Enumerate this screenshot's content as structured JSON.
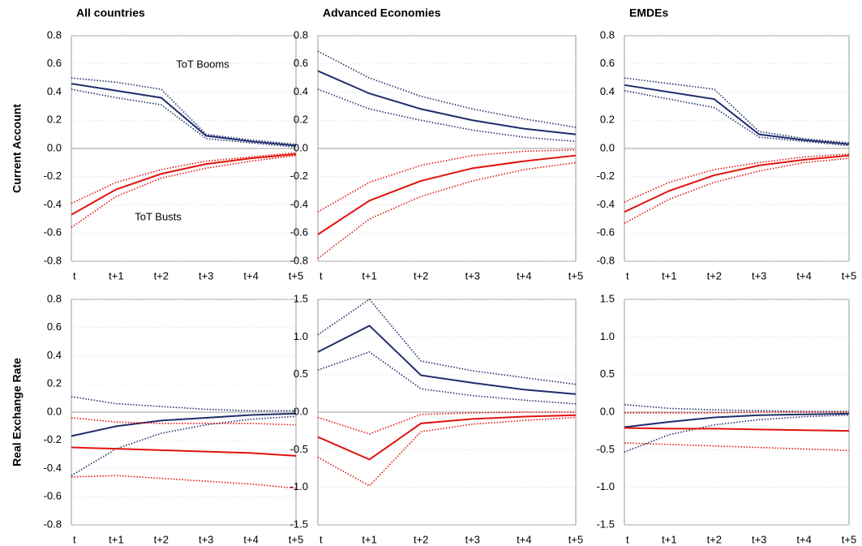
{
  "chart_data": [
    {
      "type": "line",
      "title": "All countries",
      "ylabel": "Current Account",
      "categories": [
        "t",
        "t+1",
        "t+2",
        "t+3",
        "t+4",
        "t+5"
      ],
      "ylim": [
        -0.8,
        0.8
      ],
      "yticks": [
        -0.8,
        -0.6,
        -0.4,
        -0.2,
        {
          "value": 0,
          "label": "0.0"
        },
        0.2,
        0.4,
        0.6,
        0.8
      ],
      "grid": true,
      "annotations": [
        {
          "text": "ToT Booms",
          "color": "#1f2d6b"
        },
        {
          "text": "ToT Busts",
          "color": "#e3120b"
        }
      ],
      "series": [
        {
          "color": "#1f2d6b",
          "style": "solid",
          "values": [
            0.46,
            0.41,
            0.36,
            0.09,
            0.05,
            0.02
          ]
        },
        {
          "color": "#1f2d6b",
          "style": "dotted",
          "values": [
            0.5,
            0.47,
            0.42,
            0.1,
            0.06,
            0.03
          ]
        },
        {
          "color": "#1f2d6b",
          "style": "dotted",
          "values": [
            0.42,
            0.36,
            0.31,
            0.07,
            0.04,
            0.01
          ]
        },
        {
          "color": "#e3120b",
          "style": "solid",
          "values": [
            -0.47,
            -0.29,
            -0.18,
            -0.11,
            -0.07,
            -0.04
          ]
        },
        {
          "color": "#e3120b",
          "style": "dotted",
          "values": [
            -0.39,
            -0.24,
            -0.15,
            -0.09,
            -0.06,
            -0.03
          ]
        },
        {
          "color": "#e3120b",
          "style": "dotted",
          "values": [
            -0.56,
            -0.34,
            -0.21,
            -0.14,
            -0.09,
            -0.05
          ]
        }
      ]
    },
    {
      "type": "line",
      "title": "Advanced Economies",
      "categories": [
        "t",
        "t+1",
        "t+2",
        "t+3",
        "t+4",
        "t+5"
      ],
      "ylim": [
        -0.8,
        0.8
      ],
      "yticks": [
        -0.8,
        -0.6,
        -0.4,
        -0.2,
        {
          "value": 0,
          "label": "0.0"
        },
        0.2,
        0.4,
        0.6,
        0.8
      ],
      "grid": true,
      "series": [
        {
          "color": "#1f2d6b",
          "style": "solid",
          "values": [
            0.55,
            0.39,
            0.28,
            0.2,
            0.14,
            0.1
          ]
        },
        {
          "color": "#1f2d6b",
          "style": "dotted",
          "values": [
            0.69,
            0.5,
            0.37,
            0.28,
            0.21,
            0.15
          ]
        },
        {
          "color": "#1f2d6b",
          "style": "dotted",
          "values": [
            0.42,
            0.28,
            0.2,
            0.13,
            0.08,
            0.05
          ]
        },
        {
          "color": "#e3120b",
          "style": "solid",
          "values": [
            -0.61,
            -0.37,
            -0.23,
            -0.14,
            -0.09,
            -0.05
          ]
        },
        {
          "color": "#e3120b",
          "style": "dotted",
          "values": [
            -0.45,
            -0.24,
            -0.12,
            -0.05,
            -0.02,
            -0.01
          ]
        },
        {
          "color": "#e3120b",
          "style": "dotted",
          "values": [
            -0.78,
            -0.5,
            -0.34,
            -0.23,
            -0.15,
            -0.1
          ]
        }
      ]
    },
    {
      "type": "line",
      "title": "EMDEs",
      "categories": [
        "t",
        "t+1",
        "t+2",
        "t+3",
        "t+4",
        "t+5"
      ],
      "ylim": [
        -0.8,
        0.8
      ],
      "yticks": [
        -0.8,
        -0.6,
        -0.4,
        -0.2,
        {
          "value": 0,
          "label": "0.0"
        },
        0.2,
        0.4,
        0.6,
        0.8
      ],
      "grid": true,
      "series": [
        {
          "color": "#1f2d6b",
          "style": "solid",
          "values": [
            0.45,
            0.4,
            0.35,
            0.1,
            0.06,
            0.03
          ]
        },
        {
          "color": "#1f2d6b",
          "style": "dotted",
          "values": [
            0.5,
            0.46,
            0.42,
            0.12,
            0.07,
            0.04
          ]
        },
        {
          "color": "#1f2d6b",
          "style": "dotted",
          "values": [
            0.41,
            0.35,
            0.29,
            0.08,
            0.05,
            0.02
          ]
        },
        {
          "color": "#e3120b",
          "style": "solid",
          "values": [
            -0.45,
            -0.3,
            -0.19,
            -0.12,
            -0.08,
            -0.05
          ]
        },
        {
          "color": "#e3120b",
          "style": "dotted",
          "values": [
            -0.38,
            -0.24,
            -0.15,
            -0.1,
            -0.06,
            -0.04
          ]
        },
        {
          "color": "#e3120b",
          "style": "dotted",
          "values": [
            -0.53,
            -0.36,
            -0.24,
            -0.16,
            -0.1,
            -0.07
          ]
        }
      ]
    },
    {
      "type": "line",
      "ylabel": "Real Exchange Rate",
      "categories": [
        "t",
        "t+1",
        "t+2",
        "t+3",
        "t+4",
        "t+5"
      ],
      "ylim": [
        -0.8,
        0.8
      ],
      "yticks": [
        -0.8,
        -0.6,
        -0.4,
        -0.2,
        {
          "value": 0,
          "label": "0.0"
        },
        0.2,
        0.4,
        0.6,
        0.8
      ],
      "grid": true,
      "series": [
        {
          "color": "#1f2d6b",
          "style": "solid",
          "values": [
            -0.17,
            -0.1,
            -0.06,
            -0.04,
            -0.02,
            -0.01
          ]
        },
        {
          "color": "#1f2d6b",
          "style": "dotted",
          "values": [
            0.11,
            0.06,
            0.04,
            0.02,
            0.01,
            0.01
          ]
        },
        {
          "color": "#1f2d6b",
          "style": "dotted",
          "values": [
            -0.45,
            -0.26,
            -0.15,
            -0.09,
            -0.05,
            -0.03
          ]
        },
        {
          "color": "#e3120b",
          "style": "solid",
          "values": [
            -0.25,
            -0.26,
            -0.27,
            -0.28,
            -0.29,
            -0.31
          ]
        },
        {
          "color": "#e3120b",
          "style": "dotted",
          "values": [
            -0.04,
            -0.07,
            -0.08,
            -0.08,
            -0.08,
            -0.09
          ]
        },
        {
          "color": "#e3120b",
          "style": "dotted",
          "values": [
            -0.46,
            -0.45,
            -0.47,
            -0.49,
            -0.51,
            -0.54
          ]
        }
      ]
    },
    {
      "type": "line",
      "categories": [
        "t",
        "t+1",
        "t+2",
        "t+3",
        "t+4",
        "t+5"
      ],
      "ylim": [
        -1.5,
        1.5
      ],
      "yticks": [
        -1.5,
        {
          "value": -1,
          "label": "-1.0"
        },
        -0.5,
        {
          "value": 0,
          "label": "0.0"
        },
        0.5,
        {
          "value": 1,
          "label": "1.0"
        },
        1.5
      ],
      "grid": true,
      "series": [
        {
          "color": "#1f2d6b",
          "style": "solid",
          "values": [
            0.8,
            1.15,
            0.49,
            0.39,
            0.3,
            0.24
          ]
        },
        {
          "color": "#1f2d6b",
          "style": "dotted",
          "values": [
            1.03,
            1.5,
            0.68,
            0.55,
            0.46,
            0.37
          ]
        },
        {
          "color": "#1f2d6b",
          "style": "dotted",
          "values": [
            0.56,
            0.8,
            0.31,
            0.22,
            0.16,
            0.11
          ]
        },
        {
          "color": "#e3120b",
          "style": "solid",
          "values": [
            -0.33,
            -0.63,
            -0.15,
            -0.09,
            -0.06,
            -0.04
          ]
        },
        {
          "color": "#e3120b",
          "style": "dotted",
          "values": [
            -0.07,
            -0.29,
            -0.03,
            -0.01,
            0,
            0
          ]
        },
        {
          "color": "#e3120b",
          "style": "dotted",
          "values": [
            -0.6,
            -0.98,
            -0.26,
            -0.16,
            -0.11,
            -0.07
          ]
        }
      ]
    },
    {
      "type": "line",
      "categories": [
        "t",
        "t+1",
        "t+2",
        "t+3",
        "t+4",
        "t+5"
      ],
      "ylim": [
        -1.5,
        1.5
      ],
      "yticks": [
        -1.5,
        {
          "value": -1,
          "label": "-1.0"
        },
        -0.5,
        {
          "value": 0,
          "label": "0.0"
        },
        0.5,
        {
          "value": 1,
          "label": "1.0"
        },
        1.5
      ],
      "grid": true,
      "series": [
        {
          "color": "#1f2d6b",
          "style": "solid",
          "values": [
            -0.2,
            -0.13,
            -0.07,
            -0.04,
            -0.03,
            -0.02
          ]
        },
        {
          "color": "#1f2d6b",
          "style": "dotted",
          "values": [
            0.1,
            0.05,
            0.03,
            0.02,
            0.01,
            0.01
          ]
        },
        {
          "color": "#1f2d6b",
          "style": "dotted",
          "values": [
            -0.53,
            -0.3,
            -0.17,
            -0.1,
            -0.06,
            -0.04
          ]
        },
        {
          "color": "#e3120b",
          "style": "solid",
          "values": [
            -0.21,
            -0.22,
            -0.22,
            -0.23,
            -0.24,
            -0.25
          ]
        },
        {
          "color": "#e3120b",
          "style": "dotted",
          "values": [
            -0.01,
            -0.01,
            -0.01,
            0,
            0,
            0
          ]
        },
        {
          "color": "#e3120b",
          "style": "dotted",
          "values": [
            -0.41,
            -0.43,
            -0.45,
            -0.47,
            -0.49,
            -0.51
          ]
        }
      ]
    }
  ]
}
